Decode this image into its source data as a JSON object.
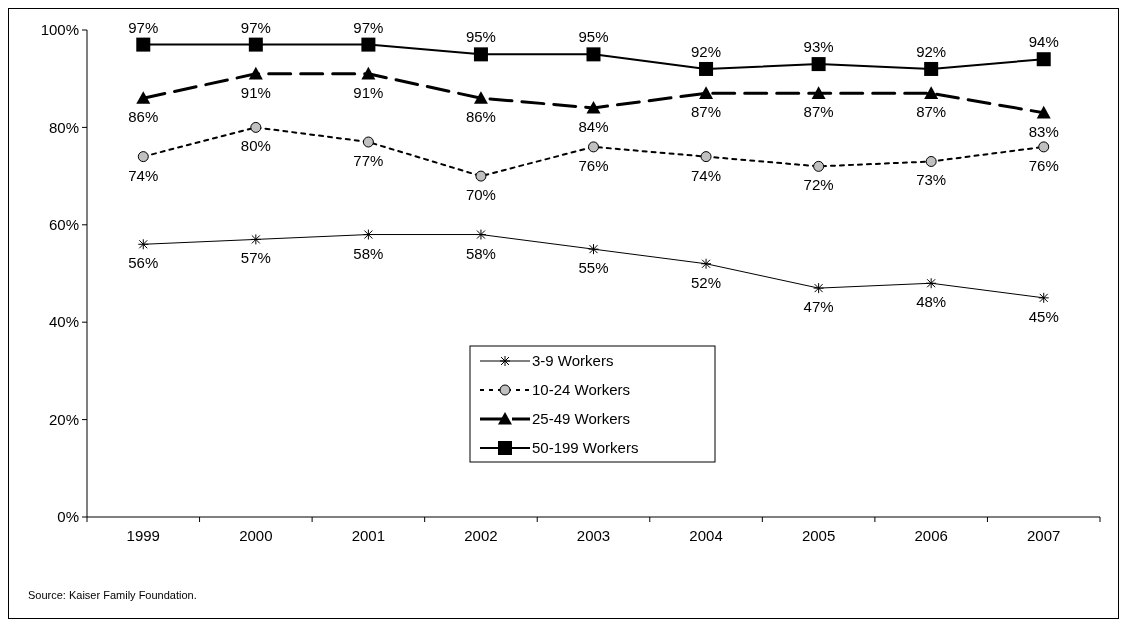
{
  "chart_data": {
    "type": "line",
    "categories": [
      "1999",
      "2000",
      "2001",
      "2002",
      "2003",
      "2004",
      "2005",
      "2006",
      "2007"
    ],
    "series": [
      {
        "name": "3-9 Workers",
        "color": "#000000",
        "marker": "cross",
        "line_style": "solid",
        "values": [
          56,
          57,
          58,
          58,
          55,
          52,
          47,
          48,
          45
        ],
        "value_labels": [
          "56%",
          "57%",
          "58%",
          "58%",
          "55%",
          "52%",
          "47%",
          "48%",
          "45%"
        ]
      },
      {
        "name": "10-24 Workers",
        "color": "#000000",
        "marker": "circle",
        "line_style": "dotted",
        "values": [
          74,
          80,
          77,
          70,
          76,
          74,
          72,
          73,
          76
        ],
        "value_labels": [
          "74%",
          "80%",
          "77%",
          "70%",
          "76%",
          "74%",
          "72%",
          "73%",
          "76%"
        ]
      },
      {
        "name": "25-49 Workers",
        "color": "#000000",
        "marker": "triangle",
        "line_style": "dashed",
        "values": [
          86,
          91,
          91,
          86,
          84,
          87,
          87,
          87,
          83
        ],
        "value_labels": [
          "86%",
          "91%",
          "91%",
          "86%",
          "84%",
          "87%",
          "87%",
          "87%",
          "83%"
        ]
      },
      {
        "name": "50-199 Workers",
        "color": "#000000",
        "marker": "square",
        "line_style": "solid",
        "values": [
          97,
          97,
          97,
          95,
          95,
          92,
          93,
          92,
          94
        ],
        "value_labels": [
          "97%",
          "97%",
          "97%",
          "95%",
          "95%",
          "92%",
          "93%",
          "92%",
          "94%"
        ]
      }
    ],
    "ylim": [
      0,
      100
    ],
    "yticks": [
      {
        "value": 0,
        "label": "0%"
      },
      {
        "value": 20,
        "label": "20%"
      },
      {
        "value": 40,
        "label": "40%"
      },
      {
        "value": 60,
        "label": "60%"
      },
      {
        "value": 80,
        "label": "80%"
      },
      {
        "value": 100,
        "label": "100%"
      }
    ],
    "legend": "bottom",
    "grid": false,
    "annotations": [
      "Source: Kaiser Family Foundation."
    ]
  }
}
